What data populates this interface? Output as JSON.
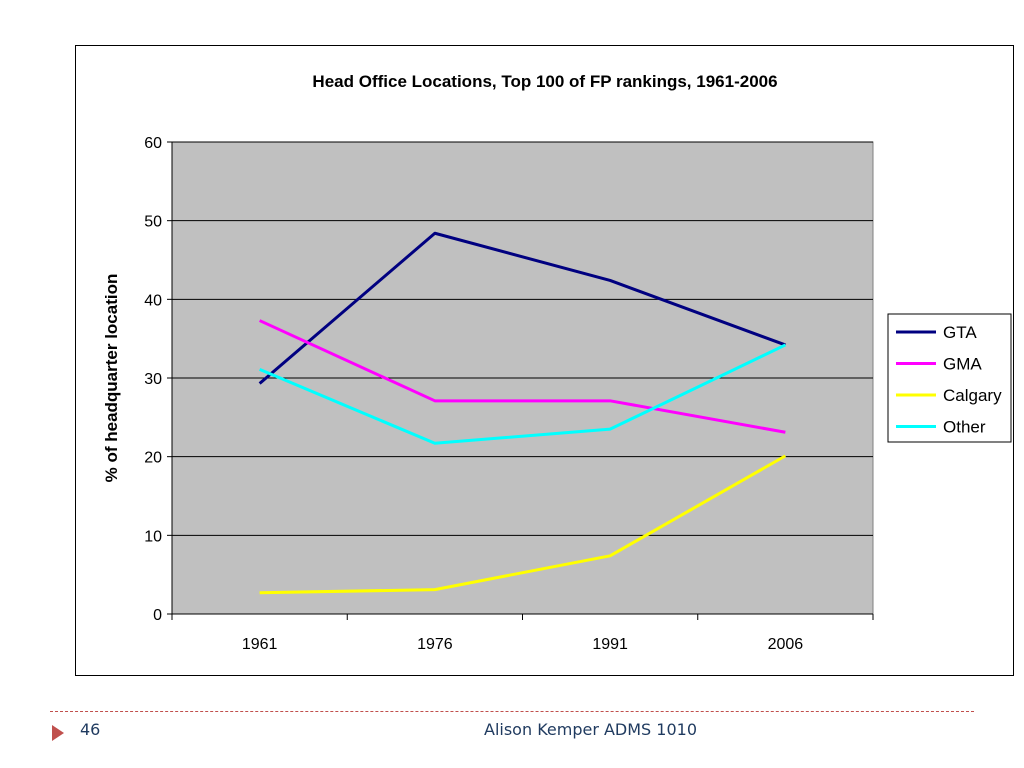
{
  "chart_data": {
    "type": "line",
    "title": "Head Office Locations, Top 100 of FP rankings, 1961-2006",
    "xlabel": "",
    "ylabel": "% of headquarter location",
    "categories": [
      "1961",
      "1976",
      "1991",
      "2006"
    ],
    "ylim": [
      0,
      60
    ],
    "yticks": [
      0,
      10,
      20,
      30,
      40,
      50,
      60
    ],
    "grid": true,
    "plot_background": "#c0c0c0",
    "legend_position": "right",
    "series": [
      {
        "name": "GTA",
        "color": "#000080",
        "values": [
          29.3,
          48.4,
          42.4,
          34.2
        ]
      },
      {
        "name": "GMA",
        "color": "#ff00ff",
        "values": [
          37.3,
          27.1,
          27.1,
          23.1
        ]
      },
      {
        "name": "Calgary",
        "color": "#ffff00",
        "values": [
          2.7,
          3.1,
          7.4,
          20.1
        ]
      },
      {
        "name": "Other",
        "color": "#00ffff",
        "values": [
          31.1,
          21.7,
          23.5,
          34.2
        ]
      }
    ]
  },
  "footer": {
    "page_number": "46",
    "text": "Alison Kemper ADMS 1010"
  }
}
